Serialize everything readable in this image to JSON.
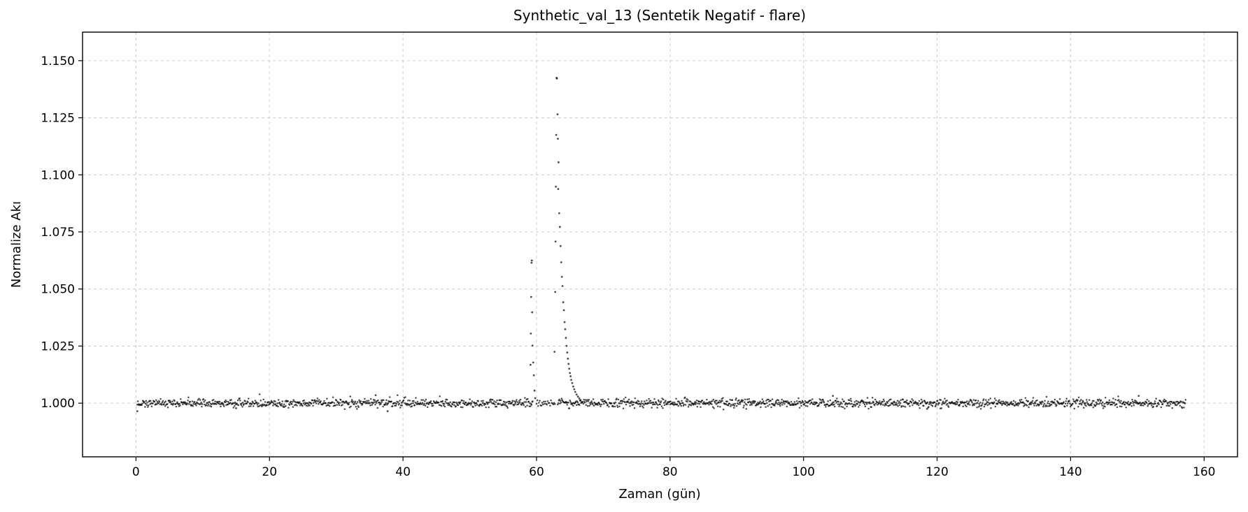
{
  "chart_data": {
    "type": "scatter",
    "title": "Synthetic_val_13 (Sentetik Negatif - flare)",
    "xlabel": "Zaman (gün)",
    "ylabel": "Normalize Akı",
    "xlim": [
      -8,
      165
    ],
    "ylim": [
      0.9765,
      1.1625
    ],
    "xticks": [
      0,
      20,
      40,
      60,
      80,
      100,
      120,
      140,
      160
    ],
    "yticks": [
      1.0,
      1.025,
      1.05,
      1.075,
      1.1,
      1.125,
      1.15
    ],
    "xtick_labels": [
      "0",
      "20",
      "40",
      "60",
      "80",
      "100",
      "120",
      "140",
      "160"
    ],
    "ytick_labels": [
      "1.000",
      "1.025",
      "1.050",
      "1.075",
      "1.100",
      "1.125",
      "1.150"
    ],
    "grid": true,
    "color": "#000000",
    "baseline": {
      "x_start": 0.2,
      "x_end": 157.3,
      "level": 1.0,
      "gaps": [
        [
          59.5,
          63.1
        ]
      ]
    },
    "points": [
      [
        0.2,
        0.9965
      ],
      [
        59.1,
        1.0168
      ],
      [
        59.15,
        1.0305
      ],
      [
        59.2,
        1.0465
      ],
      [
        59.25,
        1.0615
      ],
      [
        59.3,
        1.0625
      ],
      [
        59.35,
        1.0398
      ],
      [
        59.4,
        1.0252
      ],
      [
        59.5,
        1.0178
      ],
      [
        59.6,
        1.0122
      ],
      [
        59.7,
        1.0055
      ],
      [
        59.8,
        1.0022
      ],
      [
        62.7,
        1.0225
      ],
      [
        62.8,
        1.0487
      ],
      [
        62.85,
        1.0708
      ],
      [
        62.9,
        1.0948
      ],
      [
        62.95,
        1.1175
      ],
      [
        63.0,
        1.1425
      ],
      [
        63.05,
        1.1422
      ],
      [
        63.15,
        1.1265
      ],
      [
        63.2,
        1.1158
      ],
      [
        63.25,
        1.0938
      ],
      [
        63.3,
        1.1055
      ],
      [
        63.4,
        1.0832
      ],
      [
        63.5,
        1.0772
      ],
      [
        63.6,
        1.0688
      ],
      [
        63.7,
        1.0617
      ],
      [
        63.8,
        1.0553
      ],
      [
        63.9,
        1.0513
      ],
      [
        64.0,
        1.0442
      ],
      [
        64.1,
        1.0407
      ],
      [
        64.2,
        1.0355
      ],
      [
        64.3,
        1.0324
      ],
      [
        64.4,
        1.0286
      ],
      [
        64.5,
        1.0251
      ],
      [
        64.6,
        1.0222
      ],
      [
        64.7,
        1.0195
      ],
      [
        64.8,
        1.0172
      ],
      [
        64.9,
        1.0151
      ],
      [
        65.0,
        1.0132
      ],
      [
        65.1,
        1.0118
      ],
      [
        65.2,
        1.0102
      ],
      [
        65.35,
        1.0088
      ],
      [
        65.5,
        1.0073
      ],
      [
        65.65,
        1.0061
      ],
      [
        65.8,
        1.0049
      ],
      [
        66.0,
        1.0038
      ],
      [
        66.2,
        1.0029
      ],
      [
        66.4,
        1.0021
      ],
      [
        66.6,
        1.0014
      ],
      [
        35.9,
        1.0035
      ],
      [
        37.7,
        0.9965
      ],
      [
        15.0,
        0.9978
      ],
      [
        104.4,
        1.0032
      ],
      [
        150.2,
        1.0032
      ],
      [
        118.5,
        0.9975
      ]
    ]
  }
}
